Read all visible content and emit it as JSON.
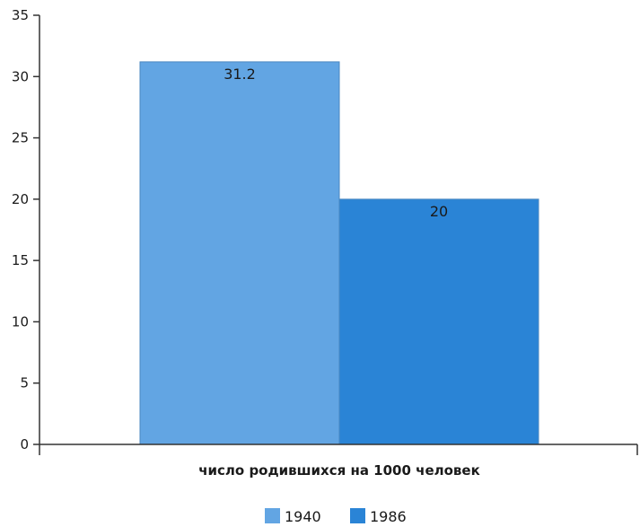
{
  "chart_data": {
    "type": "bar",
    "categories": [
      "число родившихся на 1000 человек"
    ],
    "series": [
      {
        "name": "1940",
        "values": [
          31.2
        ],
        "color": "#62a5e3"
      },
      {
        "name": "1986",
        "values": [
          20
        ],
        "color": "#2a84d6"
      }
    ],
    "xlabel": "число родившихся на 1000 человек",
    "ylim": [
      0,
      35
    ],
    "yticks": [
      0,
      5,
      10,
      15,
      20,
      25,
      30,
      35
    ],
    "data_labels": [
      "31.2",
      "20"
    ],
    "grid": false,
    "legend_position": "bottom"
  }
}
